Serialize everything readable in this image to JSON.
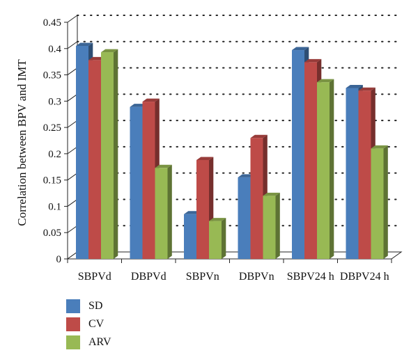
{
  "chart_data": {
    "type": "bar",
    "style": "3d-clustered",
    "ylabel": "Correlation between BPV and IMT",
    "xlabel": "",
    "ylim": [
      0,
      0.45
    ],
    "yticks": [
      "0",
      "0.05",
      "0.1",
      "0.15",
      "0.2",
      "0.25",
      "0.3",
      "0.35",
      "0.4",
      "0.45"
    ],
    "grid": "dotted horizontal",
    "categories": [
      "SBPVd",
      "DBPVd",
      "SBPVn",
      "DBPVn",
      "SBPV24 h",
      "DBPV24 h"
    ],
    "series": [
      {
        "name": "SD",
        "color": "#4a7ebb",
        "values": [
          0.405,
          0.289,
          0.085,
          0.155,
          0.397,
          0.325
        ]
      },
      {
        "name": "CV",
        "color": "#be4b48",
        "values": [
          0.378,
          0.299,
          0.188,
          0.23,
          0.374,
          0.32
        ]
      },
      {
        "name": "ARV",
        "color": "#98b954",
        "values": [
          0.393,
          0.173,
          0.072,
          0.12,
          0.336,
          0.21
        ]
      }
    ],
    "legend_position": "bottom-left"
  }
}
